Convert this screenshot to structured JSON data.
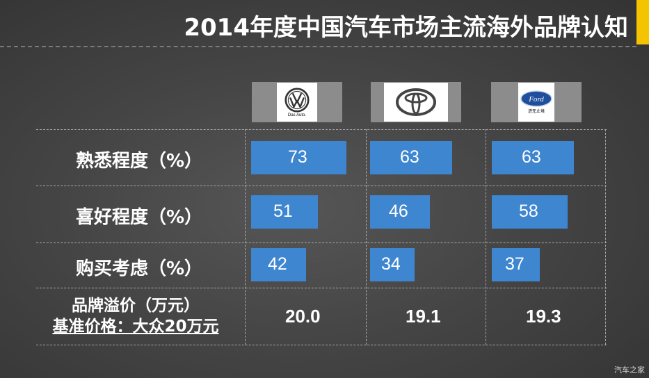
{
  "header": {
    "title": "2014年度中国汽车市场主流海外品牌认知"
  },
  "brands": [
    {
      "logo_icon": "volkswagen-logo",
      "logo_caption": "Das Auto."
    },
    {
      "logo_icon": "toyota-logo",
      "logo_caption": ""
    },
    {
      "logo_icon": "ford-logo",
      "logo_caption": "进无止境"
    }
  ],
  "chart_data": {
    "type": "bar",
    "title": "2014年度中国汽车市场主流海外品牌认知",
    "metrics": [
      {
        "label": "熟悉程度（%）",
        "values": [
          73,
          63,
          63
        ]
      },
      {
        "label": "喜好程度（%）",
        "values": [
          51,
          46,
          58
        ]
      },
      {
        "label": "购买考虑（%）",
        "values": [
          42,
          34,
          37
        ]
      }
    ],
    "premium": {
      "label": "品牌溢价（万元）",
      "sublabel": "基准价格：大众20万元",
      "values": [
        "20.0",
        "19.1",
        "19.3"
      ]
    },
    "bar_color": "#3e86cf"
  },
  "footer": {
    "watermark": "汽车之家"
  }
}
